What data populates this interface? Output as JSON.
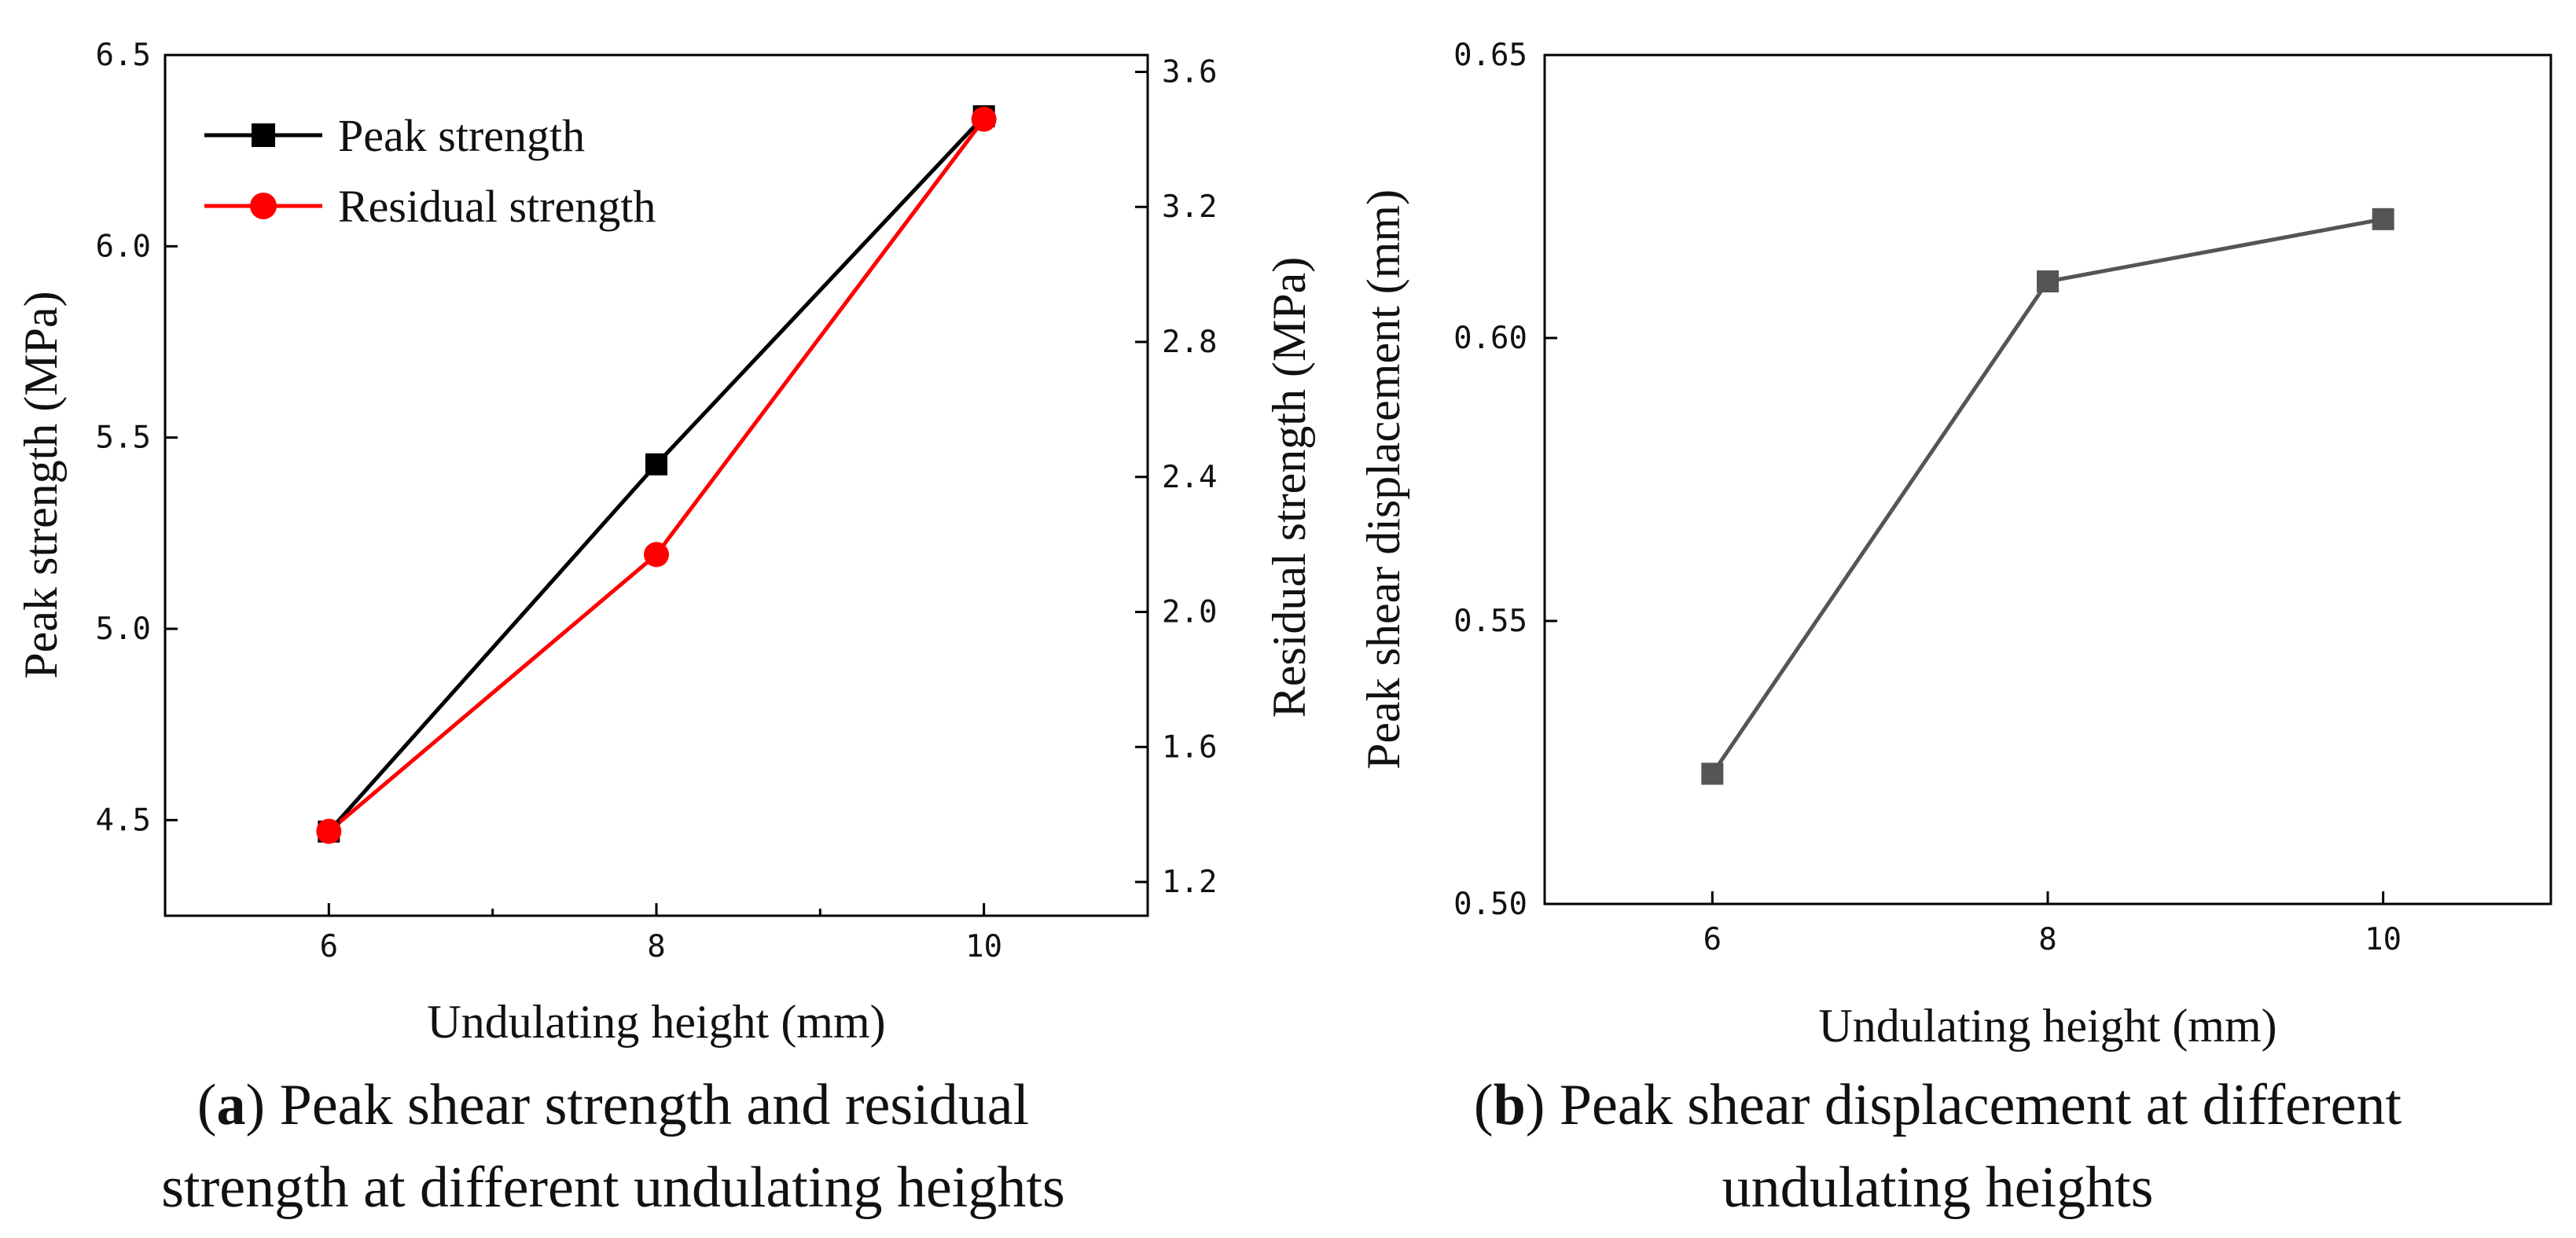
{
  "chart_data": [
    {
      "type": "line",
      "panel": "a",
      "x": [
        6,
        8,
        10
      ],
      "xlim": [
        5,
        11
      ],
      "xticks": [
        "6",
        "8",
        "10"
      ],
      "xlabel": "Undulating height (mm)",
      "ylabel": "Peak strength (MPa)",
      "ylim": [
        4.25,
        6.5
      ],
      "yticks": [
        "4.5",
        "5.0",
        "5.5",
        "6.0",
        "6.5"
      ],
      "y2label": "Residual strength (MPa)",
      "y2lim": [
        1.1,
        3.65
      ],
      "y2ticks": [
        "1.2",
        "1.6",
        "2.0",
        "2.4",
        "2.8",
        "3.2",
        "3.6"
      ],
      "legend_position": "top-left",
      "series": [
        {
          "name": "Peak strength",
          "axis": "left",
          "marker": "square",
          "color": "#000000",
          "values": [
            4.47,
            5.43,
            6.34
          ]
        },
        {
          "name": "Residual strength",
          "axis": "right",
          "marker": "circle",
          "color": "#ff0000",
          "values": [
            1.35,
            2.17,
            3.46
          ]
        }
      ],
      "caption_label": "a",
      "caption_line1": ") Peak shear strength and residual",
      "caption_line2": "strength at different undulating heights"
    },
    {
      "type": "line",
      "panel": "b",
      "x": [
        6,
        8,
        10
      ],
      "xlim": [
        5,
        11
      ],
      "xticks": [
        "6",
        "8",
        "10"
      ],
      "xlabel": "Undulating height (mm)",
      "ylabel": "Peak shear displacement (mm)",
      "ylim": [
        0.5,
        0.65
      ],
      "yticks": [
        "0.50",
        "0.55",
        "0.60",
        "0.65"
      ],
      "series": [
        {
          "name": "Peak shear displacement",
          "marker": "square",
          "color": "#555555",
          "values": [
            0.523,
            0.61,
            0.621
          ]
        }
      ],
      "caption_label": "b",
      "caption_line1": ") Peak shear displacement at different",
      "caption_line2": "undulating heights"
    }
  ]
}
